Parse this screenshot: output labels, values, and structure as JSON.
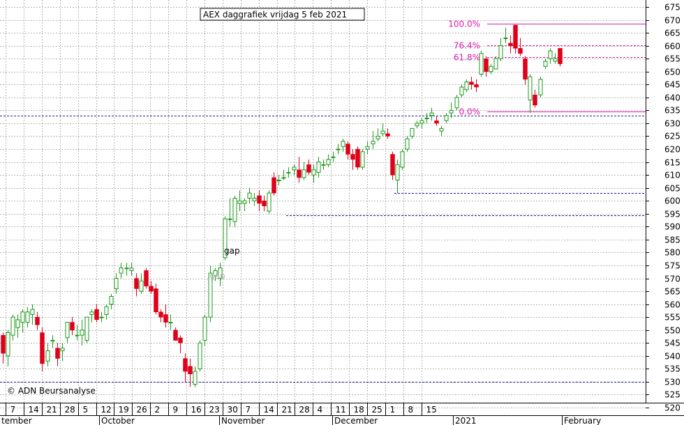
{
  "chart_data": {
    "type": "candlestick",
    "title": "AEX daggrafiek vrijdag 5 feb 2021",
    "copyright": "© ADN Beursanalyse",
    "y_range": [
      515,
      680
    ],
    "y_ticks": [
      520,
      525,
      530,
      535,
      540,
      545,
      550,
      555,
      560,
      565,
      570,
      575,
      580,
      585,
      590,
      595,
      600,
      605,
      610,
      615,
      620,
      625,
      630,
      635,
      640,
      645,
      650,
      655,
      660,
      665,
      670,
      675
    ],
    "grid": true,
    "colors": {
      "up": "#1a9a1a",
      "down": "#e0001a",
      "fib": "#dd1aa8",
      "support": "#1a1a8c",
      "grid": "#b4b4b4"
    },
    "week_labels": [
      "7",
      "14",
      "21",
      "28",
      "5",
      "12",
      "19",
      "26",
      "2",
      "9",
      "16",
      "23",
      "30",
      "7",
      "14",
      "21",
      "28",
      "4",
      "11",
      "18",
      "25",
      "1",
      "8",
      "15"
    ],
    "months": [
      "tember",
      "October",
      "November",
      "December",
      "2021",
      "February"
    ],
    "fib_levels": [
      {
        "label": "100.0%",
        "value": 668.5
      },
      {
        "label": "76.4%",
        "value": 660.3
      },
      {
        "label": "61.8%",
        "value": 655.5
      },
      {
        "label": "0.0%",
        "value": 634.5
      }
    ],
    "support_levels": [
      633,
      603,
      594.5,
      530
    ],
    "annotations": [
      {
        "text": "gap",
        "color": "#000000"
      },
      {
        "text": "gap",
        "color": "#b4b4b4"
      }
    ],
    "candles": [
      {
        "o": 548,
        "h": 549,
        "l": 537,
        "c": 541
      },
      {
        "o": 540,
        "h": 550,
        "l": 536,
        "c": 549
      },
      {
        "o": 548,
        "h": 556,
        "l": 546,
        "c": 555
      },
      {
        "o": 551,
        "h": 556,
        "l": 547,
        "c": 554
      },
      {
        "o": 553,
        "h": 558,
        "l": 549,
        "c": 557
      },
      {
        "o": 553,
        "h": 559,
        "l": 551,
        "c": 557
      },
      {
        "o": 556,
        "h": 560,
        "l": 552,
        "c": 558
      },
      {
        "o": 555,
        "h": 557,
        "l": 550,
        "c": 552
      },
      {
        "o": 549,
        "h": 551,
        "l": 534,
        "c": 537
      },
      {
        "o": 538,
        "h": 545,
        "l": 536,
        "c": 542
      },
      {
        "o": 546,
        "h": 548,
        "l": 543,
        "c": 546
      },
      {
        "o": 543,
        "h": 545,
        "l": 536,
        "c": 539
      },
      {
        "o": 542,
        "h": 545,
        "l": 538,
        "c": 543
      },
      {
        "o": 547,
        "h": 553,
        "l": 545,
        "c": 553
      },
      {
        "o": 553,
        "h": 555,
        "l": 548,
        "c": 550
      },
      {
        "o": 548,
        "h": 552,
        "l": 546,
        "c": 548
      },
      {
        "o": 548,
        "h": 554,
        "l": 544,
        "c": 550
      },
      {
        "o": 546,
        "h": 555,
        "l": 545,
        "c": 555
      },
      {
        "o": 556,
        "h": 558,
        "l": 553,
        "c": 557
      },
      {
        "o": 558,
        "h": 560,
        "l": 553,
        "c": 554
      },
      {
        "o": 555,
        "h": 557,
        "l": 553,
        "c": 555
      },
      {
        "o": 556,
        "h": 560,
        "l": 554,
        "c": 559
      },
      {
        "o": 560,
        "h": 564,
        "l": 558,
        "c": 563
      },
      {
        "o": 566,
        "h": 572,
        "l": 564,
        "c": 570
      },
      {
        "o": 572,
        "h": 576,
        "l": 570,
        "c": 574
      },
      {
        "o": 574,
        "h": 576,
        "l": 571,
        "c": 574
      },
      {
        "o": 573,
        "h": 576,
        "l": 571,
        "c": 574
      },
      {
        "o": 570,
        "h": 572,
        "l": 563,
        "c": 566
      },
      {
        "o": 565,
        "h": 572,
        "l": 564,
        "c": 569
      },
      {
        "o": 573,
        "h": 574,
        "l": 566,
        "c": 567
      },
      {
        "o": 567,
        "h": 569,
        "l": 564,
        "c": 565
      },
      {
        "o": 566,
        "h": 568,
        "l": 556,
        "c": 557
      },
      {
        "o": 557,
        "h": 558,
        "l": 553,
        "c": 555
      },
      {
        "o": 556,
        "h": 560,
        "l": 551,
        "c": 553
      },
      {
        "o": 553,
        "h": 556,
        "l": 550,
        "c": 553
      },
      {
        "o": 550,
        "h": 551,
        "l": 546,
        "c": 546
      },
      {
        "o": 547,
        "h": 548,
        "l": 541,
        "c": 545
      },
      {
        "o": 539,
        "h": 541,
        "l": 530,
        "c": 534
      },
      {
        "o": 536,
        "h": 539,
        "l": 528,
        "c": 533
      },
      {
        "o": 529,
        "h": 536,
        "l": 528,
        "c": 534
      },
      {
        "o": 535,
        "h": 546,
        "l": 534,
        "c": 545
      },
      {
        "o": 546,
        "h": 556,
        "l": 544,
        "c": 555
      },
      {
        "o": 555,
        "h": 575,
        "l": 553,
        "c": 572
      },
      {
        "o": 571,
        "h": 574,
        "l": 569,
        "c": 573
      },
      {
        "o": 570,
        "h": 576,
        "l": 567,
        "c": 574
      },
      {
        "o": 578,
        "h": 594,
        "l": 577,
        "c": 593
      },
      {
        "o": 593,
        "h": 601,
        "l": 590,
        "c": 593
      },
      {
        "o": 592,
        "h": 602,
        "l": 590,
        "c": 601
      },
      {
        "o": 599,
        "h": 604,
        "l": 596,
        "c": 600
      },
      {
        "o": 599,
        "h": 601,
        "l": 596,
        "c": 600
      },
      {
        "o": 601,
        "h": 605,
        "l": 599,
        "c": 603
      },
      {
        "o": 600,
        "h": 603,
        "l": 598,
        "c": 601
      },
      {
        "o": 602,
        "h": 604,
        "l": 596,
        "c": 599
      },
      {
        "o": 600,
        "h": 602,
        "l": 596,
        "c": 598
      },
      {
        "o": 596,
        "h": 604,
        "l": 595,
        "c": 603
      },
      {
        "o": 609,
        "h": 611,
        "l": 602,
        "c": 603
      },
      {
        "o": 608,
        "h": 610,
        "l": 606,
        "c": 608
      },
      {
        "o": 609,
        "h": 612,
        "l": 608,
        "c": 609
      },
      {
        "o": 611,
        "h": 613,
        "l": 609,
        "c": 611
      },
      {
        "o": 612,
        "h": 614,
        "l": 610,
        "c": 613
      },
      {
        "o": 612,
        "h": 617,
        "l": 607,
        "c": 609
      },
      {
        "o": 609,
        "h": 615,
        "l": 608,
        "c": 612
      },
      {
        "o": 614,
        "h": 616,
        "l": 610,
        "c": 611
      },
      {
        "o": 610,
        "h": 614,
        "l": 607,
        "c": 612
      },
      {
        "o": 611,
        "h": 617,
        "l": 609,
        "c": 615
      },
      {
        "o": 614,
        "h": 616,
        "l": 612,
        "c": 614
      },
      {
        "o": 614,
        "h": 618,
        "l": 613,
        "c": 616
      },
      {
        "o": 617,
        "h": 619,
        "l": 615,
        "c": 617
      },
      {
        "o": 620,
        "h": 622,
        "l": 618,
        "c": 620
      },
      {
        "o": 621,
        "h": 624,
        "l": 619,
        "c": 623
      },
      {
        "o": 622,
        "h": 623,
        "l": 616,
        "c": 618
      },
      {
        "o": 618,
        "h": 620,
        "l": 612,
        "c": 616
      },
      {
        "o": 620,
        "h": 621,
        "l": 612,
        "c": 613
      },
      {
        "o": 613,
        "h": 620,
        "l": 612,
        "c": 619
      },
      {
        "o": 620,
        "h": 623,
        "l": 618,
        "c": 621
      },
      {
        "o": 622,
        "h": 627,
        "l": 620,
        "c": 623
      },
      {
        "o": 624,
        "h": 628,
        "l": 623,
        "c": 625
      },
      {
        "o": 626,
        "h": 630,
        "l": 625,
        "c": 627
      },
      {
        "o": 626,
        "h": 628,
        "l": 624,
        "c": 625
      },
      {
        "o": 618,
        "h": 619,
        "l": 608,
        "c": 610
      },
      {
        "o": 608,
        "h": 616,
        "l": 603,
        "c": 614
      },
      {
        "o": 613,
        "h": 620,
        "l": 612,
        "c": 619
      },
      {
        "o": 620,
        "h": 625,
        "l": 619,
        "c": 624
      },
      {
        "o": 625,
        "h": 628,
        "l": 624,
        "c": 628
      },
      {
        "o": 629,
        "h": 631,
        "l": 628,
        "c": 630
      },
      {
        "o": 630,
        "h": 632,
        "l": 628,
        "c": 631
      },
      {
        "o": 632,
        "h": 634,
        "l": 630,
        "c": 632
      },
      {
        "o": 633,
        "h": 636,
        "l": 631,
        "c": 634
      },
      {
        "o": 631,
        "h": 633,
        "l": 629,
        "c": 630
      },
      {
        "o": 627,
        "h": 629,
        "l": 625,
        "c": 628
      },
      {
        "o": 631,
        "h": 634,
        "l": 630,
        "c": 633
      },
      {
        "o": 634,
        "h": 638,
        "l": 632,
        "c": 635
      },
      {
        "o": 636,
        "h": 641,
        "l": 635,
        "c": 640
      },
      {
        "o": 641,
        "h": 645,
        "l": 640,
        "c": 644
      },
      {
        "o": 643,
        "h": 647,
        "l": 642,
        "c": 646
      },
      {
        "o": 646,
        "h": 648,
        "l": 643,
        "c": 645
      },
      {
        "o": 645,
        "h": 647,
        "l": 642,
        "c": 644
      },
      {
        "o": 649,
        "h": 658,
        "l": 648,
        "c": 657
      },
      {
        "o": 655,
        "h": 656,
        "l": 648,
        "c": 650
      },
      {
        "o": 650,
        "h": 653,
        "l": 649,
        "c": 652
      },
      {
        "o": 651,
        "h": 656,
        "l": 651,
        "c": 655
      },
      {
        "o": 655,
        "h": 663,
        "l": 654,
        "c": 660
      },
      {
        "o": 663,
        "h": 667,
        "l": 661,
        "c": 663
      },
      {
        "o": 661,
        "h": 664,
        "l": 657,
        "c": 660
      },
      {
        "o": 668,
        "h": 668,
        "l": 657,
        "c": 659
      },
      {
        "o": 659,
        "h": 663,
        "l": 656,
        "c": 657
      },
      {
        "o": 655,
        "h": 656,
        "l": 645,
        "c": 647
      },
      {
        "o": 639,
        "h": 649,
        "l": 634,
        "c": 648
      },
      {
        "o": 641,
        "h": 643,
        "l": 636,
        "c": 637
      },
      {
        "o": 641,
        "h": 648,
        "l": 640,
        "c": 647
      },
      {
        "o": 652,
        "h": 655,
        "l": 651,
        "c": 654
      },
      {
        "o": 655,
        "h": 659,
        "l": 653,
        "c": 658
      },
      {
        "o": 654,
        "h": 657,
        "l": 653,
        "c": 655
      },
      {
        "o": 659,
        "h": 659,
        "l": 652,
        "c": 653
      }
    ]
  }
}
